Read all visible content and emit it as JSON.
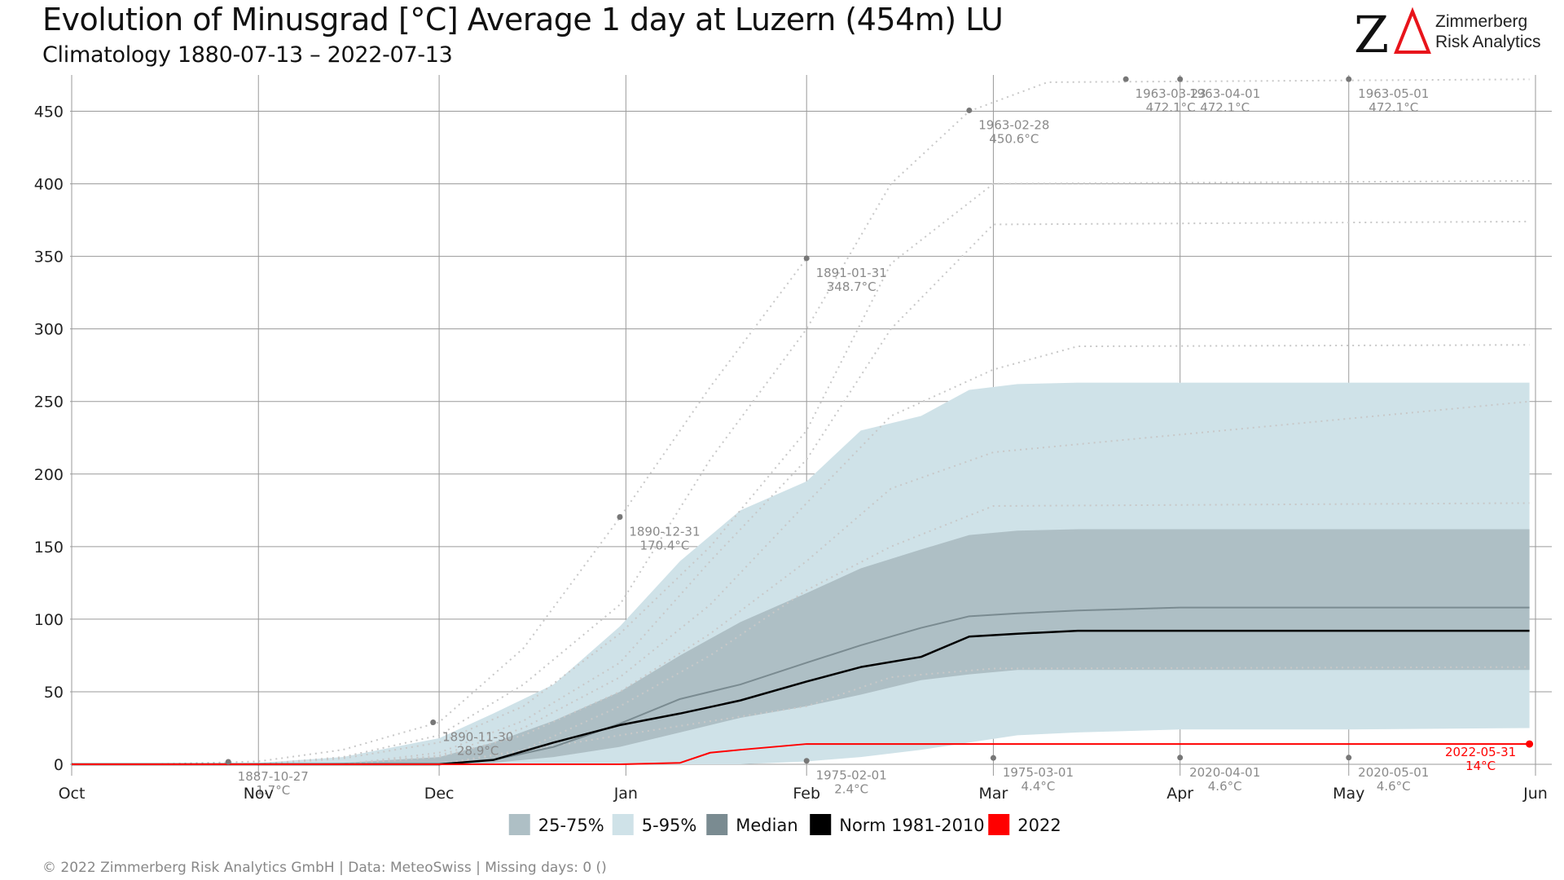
{
  "header": {
    "title": "Evolution of Minusgrad [°C] Average 1 day at Luzern (454m) LU",
    "subtitle": "Climatology 1880-07-13 – 2022-07-13"
  },
  "logo": {
    "mark": "ZΔ",
    "line1": "Zimmerberg",
    "line2": "Risk Analytics",
    "accent_color": "#e8141b"
  },
  "footer": {
    "text": "©  2022 Zimmerberg Risk Analytics GmbH | Data: MeteoSwiss | Missing days: 0 ()"
  },
  "colors": {
    "band_25_75": "#aebfc5",
    "band_5_95": "#cfe2e8",
    "median": "#7a8b91",
    "norm": "#000000",
    "current": "#ff0000",
    "extreme_dots": "#c8c8c8",
    "marker": "#777777"
  },
  "chart_data": {
    "type": "line",
    "title": "Evolution of Minusgrad [°C] Average 1 day at Luzern (454m) LU",
    "subtitle": "Climatology 1880-07-13 – 2022-07-13",
    "x_axis": {
      "range": [
        "10-01",
        "06-01"
      ],
      "ticks": [
        {
          "date": "10-01",
          "label": "Oct"
        },
        {
          "date": "11-01",
          "label": "Nov"
        },
        {
          "date": "12-01",
          "label": "Dec"
        },
        {
          "date": "01-01",
          "label": "Jan"
        },
        {
          "date": "02-01",
          "label": "Feb"
        },
        {
          "date": "03-01",
          "label": "Mar"
        },
        {
          "date": "04-01",
          "label": "Apr"
        },
        {
          "date": "05-01",
          "label": "May"
        },
        {
          "date": "06-01",
          "label": "Jun"
        }
      ]
    },
    "y_axis": {
      "range": [
        0,
        475
      ],
      "ticks": [
        0,
        50,
        100,
        150,
        200,
        250,
        300,
        350,
        400,
        450
      ]
    },
    "grid": true,
    "legend": {
      "position": "bottom",
      "items": [
        {
          "label": "25-75%",
          "color": "#aebfc5"
        },
        {
          "label": "5-95%",
          "color": "#cfe2e8"
        },
        {
          "label": "Median",
          "color": "#7a8b91"
        },
        {
          "label": "Norm 1981-2010",
          "color": "#000000"
        },
        {
          "label": "2022",
          "color": "#ff0000"
        }
      ]
    },
    "x_dates": [
      "10-01",
      "10-15",
      "11-01",
      "11-15",
      "12-01",
      "12-10",
      "12-20",
      "12-31",
      "01-10",
      "01-20",
      "01-31",
      "02-10",
      "02-20",
      "02-28",
      "03-05",
      "03-15",
      "04-01",
      "05-01",
      "05-31"
    ],
    "band_5_95": {
      "lower": [
        0,
        0,
        0,
        0,
        0,
        0,
        0,
        0,
        0,
        0,
        2,
        5,
        10,
        15,
        20,
        22,
        24,
        24,
        25
      ],
      "upper": [
        0,
        0,
        1,
        5,
        18,
        35,
        55,
        95,
        140,
        175,
        195,
        230,
        240,
        258,
        262,
        263,
        263,
        263,
        263
      ]
    },
    "band_25_75": {
      "lower": [
        0,
        0,
        0,
        0,
        0,
        1,
        5,
        12,
        22,
        32,
        40,
        48,
        58,
        62,
        65,
        65,
        65,
        65,
        65
      ],
      "upper": [
        0,
        0,
        0,
        1,
        5,
        15,
        30,
        50,
        75,
        98,
        118,
        135,
        148,
        158,
        161,
        162,
        162,
        162,
        162
      ]
    },
    "series": [
      {
        "name": "Median",
        "values": [
          0,
          0,
          0,
          0,
          0,
          3,
          12,
          28,
          45,
          55,
          70,
          82,
          94,
          102,
          104,
          106,
          108,
          108,
          108
        ]
      },
      {
        "name": "Norm 1981-2010",
        "values": [
          0,
          0,
          0,
          0,
          0,
          3,
          15,
          27,
          35,
          44,
          57,
          67,
          74,
          88,
          90,
          92,
          92,
          92,
          92
        ]
      },
      {
        "name": "2022",
        "dates": [
          "10-01",
          "12-31",
          "01-10",
          "01-15",
          "01-20",
          "01-31",
          "02-15",
          "03-01",
          "05-31"
        ],
        "values": [
          0,
          0,
          1,
          8,
          10,
          14,
          14,
          14,
          14
        ]
      }
    ],
    "extremes": [
      {
        "dates": [
          "10-15",
          "11-01",
          "11-15",
          "12-01",
          "12-15",
          "12-31",
          "01-15",
          "01-31"
        ],
        "values": [
          0,
          2,
          10,
          29,
          80,
          170,
          260,
          348.7
        ]
      },
      {
        "dates": [
          "11-01",
          "11-15",
          "12-01",
          "12-15",
          "12-31",
          "01-15",
          "01-31",
          "02-15",
          "02-28",
          "03-10",
          "05-31"
        ],
        "values": [
          0,
          5,
          20,
          55,
          110,
          210,
          300,
          400,
          450,
          470,
          472
        ]
      },
      {
        "dates": [
          "11-01",
          "11-15",
          "12-01",
          "12-15",
          "12-31",
          "01-15",
          "01-31",
          "02-15",
          "03-01",
          "05-31"
        ],
        "values": [
          0,
          4,
          15,
          40,
          90,
          150,
          230,
          345,
          400,
          402
        ]
      },
      {
        "dates": [
          "11-15",
          "12-01",
          "12-15",
          "12-31",
          "01-15",
          "01-31",
          "02-15",
          "03-01",
          "05-31"
        ],
        "values": [
          0,
          8,
          30,
          70,
          140,
          210,
          300,
          372,
          374
        ]
      },
      {
        "dates": [
          "11-15",
          "12-01",
          "12-15",
          "12-31",
          "01-15",
          "01-31",
          "02-15",
          "03-01",
          "03-15",
          "05-31"
        ],
        "values": [
          0,
          6,
          25,
          60,
          110,
          180,
          240,
          272,
          288,
          289
        ]
      },
      {
        "dates": [
          "11-15",
          "12-01",
          "12-15",
          "12-31",
          "01-15",
          "01-31",
          "02-15",
          "03-01",
          "05-31"
        ],
        "values": [
          0,
          5,
          20,
          50,
          90,
          140,
          190,
          215,
          250
        ]
      },
      {
        "dates": [
          "12-01",
          "12-15",
          "12-31",
          "01-15",
          "01-31",
          "02-15",
          "03-01",
          "05-31"
        ],
        "values": [
          0,
          10,
          40,
          75,
          120,
          150,
          178,
          180
        ]
      },
      {
        "dates": [
          "12-01",
          "12-31",
          "01-31",
          "02-15",
          "03-01",
          "05-31"
        ],
        "values": [
          0,
          20,
          40,
          60,
          66,
          67
        ]
      }
    ],
    "annotations": [
      {
        "date": "10-27",
        "value": 1.7,
        "label_date": "1887-10-27",
        "label_value": "1.7°C",
        "color": "#8a8a8a"
      },
      {
        "date": "11-30",
        "value": 28.9,
        "label_date": "1890-11-30",
        "label_value": "28.9°C",
        "color": "#8a8a8a"
      },
      {
        "date": "12-31",
        "value": 170.4,
        "label_date": "1890-12-31",
        "label_value": "170.4°C",
        "color": "#8a8a8a"
      },
      {
        "date": "01-31",
        "value": 348.7,
        "label_date": "1891-01-31",
        "label_value": "348.7°C",
        "color": "#8a8a8a"
      },
      {
        "date": "02-28",
        "value": 450.6,
        "label_date": "1963-02-28",
        "label_value": "450.6°C",
        "color": "#8a8a8a"
      },
      {
        "date": "03-23",
        "value": 472.1,
        "label_date": "1963-03-23",
        "label_value": "472.1°C",
        "color": "#8a8a8a"
      },
      {
        "date": "04-01",
        "value": 472.1,
        "label_date": "1963-04-01",
        "label_value": "472.1°C",
        "color": "#8a8a8a"
      },
      {
        "date": "05-01",
        "value": 472.1,
        "label_date": "1963-05-01",
        "label_value": "472.1°C",
        "color": "#8a8a8a"
      },
      {
        "date": "02-01",
        "value": 2.4,
        "label_date": "1975-02-01",
        "label_value": "2.4°C",
        "color": "#8a8a8a"
      },
      {
        "date": "03-01",
        "value": 4.4,
        "label_date": "1975-03-01",
        "label_value": "4.4°C",
        "color": "#8a8a8a"
      },
      {
        "date": "04-01",
        "value": 4.6,
        "label_date": "2020-04-01",
        "label_value": "4.6°C",
        "color": "#8a8a8a"
      },
      {
        "date": "05-01",
        "value": 4.6,
        "label_date": "2020-05-01",
        "label_value": "4.6°C",
        "color": "#8a8a8a"
      },
      {
        "date": "05-31",
        "value": 14,
        "label_date": "2022-05-31",
        "label_value": "14°C",
        "color": "#ff0000"
      }
    ]
  }
}
